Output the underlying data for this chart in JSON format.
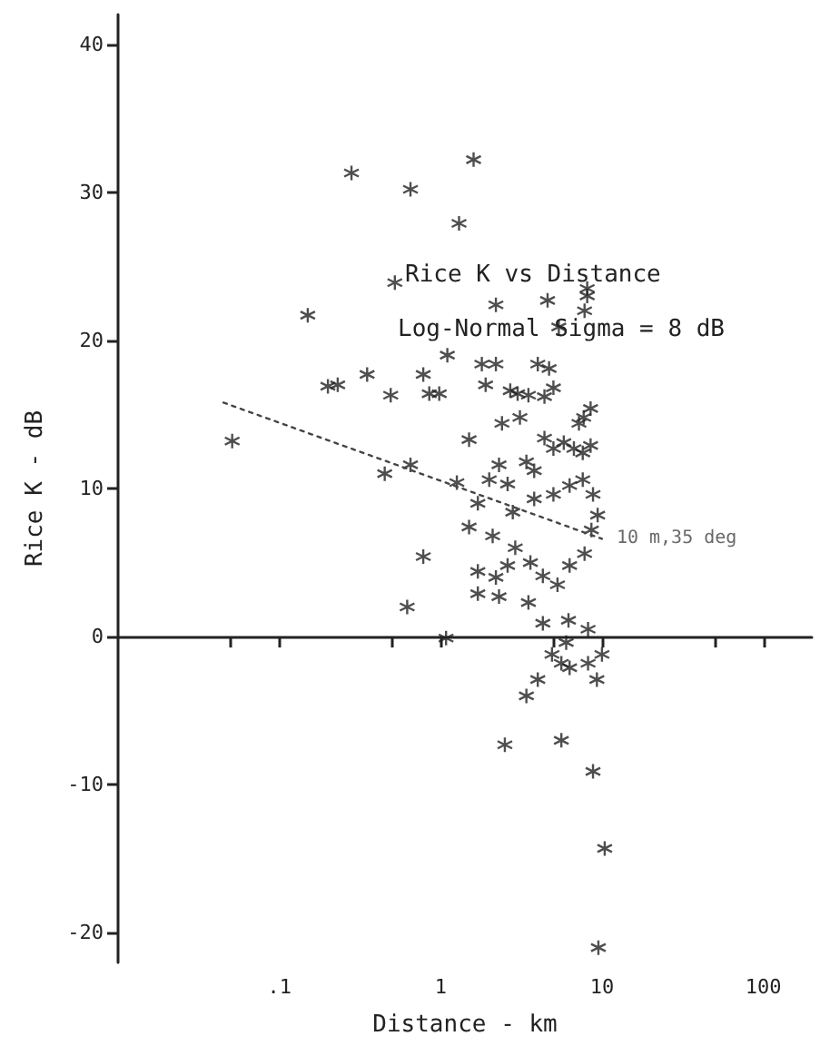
{
  "chart_data": {
    "type": "scatter",
    "title": "Rice K vs Distance",
    "subtitle": "Log-Normal Sigma = 8 dB",
    "xlabel": "Distance - km",
    "ylabel": "Rice K - dB",
    "log": "x",
    "xlim": [
      0.01,
      200
    ],
    "ylim": [
      -22,
      42
    ],
    "xticks": [
      {
        "value": 0.05,
        "label": null
      },
      {
        "value": 0.1,
        "label": ".1"
      },
      {
        "value": 0.5,
        "label": null
      },
      1,
      {
        "value": 5,
        "label": null
      },
      10,
      {
        "value": 50,
        "label": null
      },
      100
    ],
    "yticks": [
      -20,
      -10,
      0,
      10,
      20,
      30,
      40
    ],
    "marker": "cross",
    "annotations": [
      {
        "text": "10 m,35 deg",
        "x": 10,
        "y": 6.6
      }
    ],
    "series": [
      {
        "color": "#222222",
        "x": [
          0.28,
          0.65,
          1.6,
          1.3,
          0.15,
          0.52,
          4.6,
          8.1,
          8.1,
          7.8,
          5.4,
          2.2,
          1.1,
          1.8,
          2.2,
          4.0,
          4.7,
          0.35,
          0.78,
          0.2,
          0.23,
          0.49,
          0.85,
          0.98,
          1.9,
          2.7,
          3.0,
          3.5,
          4.4,
          5.0,
          8.5,
          7.7,
          7.2,
          2.4,
          3.1,
          0.051,
          4.4,
          5.0,
          5.8,
          6.7,
          7.6,
          8.5,
          1.5,
          2.3,
          3.4,
          3.8,
          0.45,
          0.65,
          1.26,
          2.0,
          2.6,
          1.7,
          2.8,
          3.8,
          5.0,
          6.3,
          7.6,
          8.8,
          0.78,
          0.62,
          1.5,
          2.1,
          2.9,
          3.6,
          4.3,
          5.3,
          6.3,
          7.8,
          8.6,
          9.4,
          1.7,
          2.2,
          2.6,
          1.7,
          2.3,
          3.5,
          6.2,
          4.3,
          8.2,
          1.08,
          4.9,
          6.0,
          8.2,
          10.0,
          6.3,
          4.0,
          3.4,
          5.6,
          9.3,
          2.5,
          5.6,
          8.8,
          10.4,
          9.5
        ],
        "values": [
          31.3,
          30.2,
          32.2,
          27.9,
          21.7,
          23.9,
          22.7,
          23.5,
          23.0,
          22.0,
          20.9,
          22.4,
          19.0,
          18.4,
          18.4,
          18.4,
          18.1,
          17.7,
          17.7,
          16.9,
          17.0,
          16.3,
          16.4,
          16.4,
          17.0,
          16.6,
          16.4,
          16.3,
          16.2,
          16.8,
          15.4,
          14.8,
          14.4,
          14.4,
          14.8,
          13.2,
          13.4,
          12.7,
          13.1,
          12.7,
          12.4,
          12.9,
          13.3,
          11.6,
          11.8,
          11.2,
          11.0,
          11.6,
          10.4,
          10.6,
          10.3,
          9.0,
          8.4,
          9.3,
          9.6,
          10.2,
          10.6,
          9.6,
          5.4,
          2.0,
          7.4,
          6.8,
          6.0,
          5.0,
          4.1,
          3.5,
          4.8,
          5.6,
          7.2,
          8.2,
          4.4,
          4.0,
          4.8,
          2.9,
          2.7,
          2.3,
          1.1,
          0.9,
          0.5,
          -0.1,
          -1.2,
          -0.4,
          -1.8,
          -1.2,
          -2.1,
          -2.9,
          -4.0,
          -1.8,
          -2.9,
          -7.3,
          -7.0,
          -9.1,
          -14.3,
          -21.0
        ]
      },
      {
        "type": "line",
        "color": "#444444",
        "line_style": "dotted",
        "marker": "none",
        "x": [
          0.045,
          10
        ],
        "values": [
          15.8,
          6.6
        ]
      }
    ]
  }
}
